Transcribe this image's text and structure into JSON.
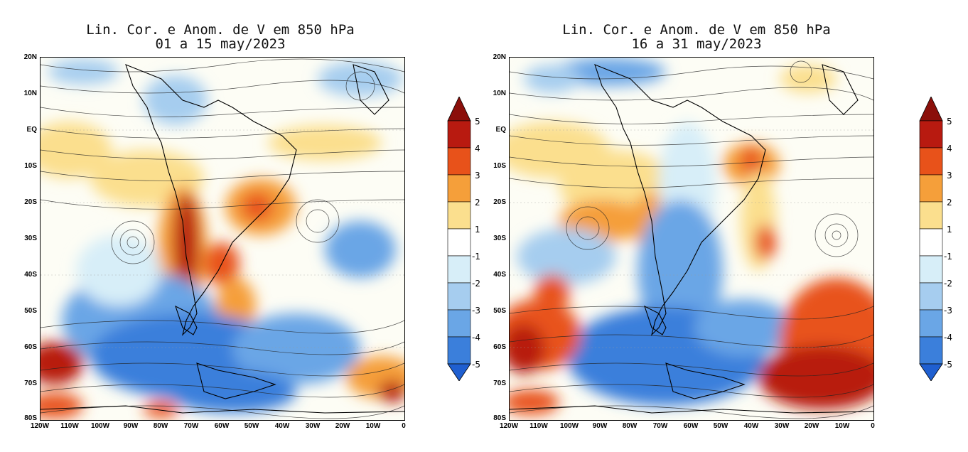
{
  "panels": [
    {
      "title_line1": "Lin. Cor. e Anom. de V em 850 hPa",
      "title_line2": "01 a 15 may/2023"
    },
    {
      "title_line1": "Lin. Cor. e Anom. de V em 850 hPa",
      "title_line2": "16 a 31 may/2023"
    }
  ],
  "axes": {
    "lat_labels": [
      "20N",
      "10N",
      "EQ",
      "10S",
      "20S",
      "30S",
      "40S",
      "50S",
      "60S",
      "70S",
      "80S"
    ],
    "lon_labels": [
      "120W",
      "110W",
      "100W",
      "90W",
      "80W",
      "70W",
      "60W",
      "50W",
      "40W",
      "30W",
      "20W",
      "10W",
      "0"
    ],
    "lat_range": [
      -80,
      20
    ],
    "lon_range": [
      -120,
      0
    ]
  },
  "colorbar": {
    "labels": [
      "5",
      "4",
      "3",
      "2",
      "1",
      "-1",
      "-2",
      "-3",
      "-4",
      "-5"
    ],
    "colors": [
      "#b81a10",
      "#e8521a",
      "#f59f3a",
      "#fbdf8e",
      "#fdf7c8",
      "#ffffff",
      "#d7eef8",
      "#a6cdef",
      "#6aa6e6",
      "#3b7fdb",
      "#1f5fd0",
      "#1a4fc0"
    ]
  }
}
